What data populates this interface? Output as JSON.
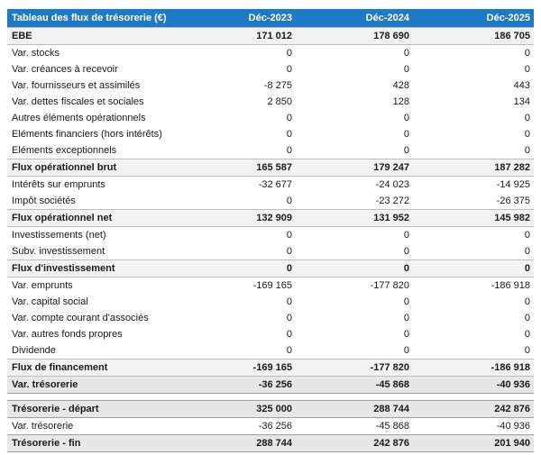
{
  "colors": {
    "header_bg": "#1e7ac4",
    "total_row_bg": "#f3f3f3",
    "summary_row_bg": "#e7e7e7",
    "header_text": "#ffffff"
  },
  "table": {
    "title": "Tableau des flux de trésorerie (€)",
    "columns": [
      "Déc-2023",
      "Déc-2024",
      "Déc-2025"
    ],
    "rows": [
      {
        "label": "EBE",
        "values": [
          "171 012",
          "178 690",
          "186 705"
        ]
      },
      {
        "label": "Var. stocks",
        "values": [
          "0",
          "0",
          "0"
        ]
      },
      {
        "label": "Var. créances à recevoir",
        "values": [
          "0",
          "0",
          "0"
        ]
      },
      {
        "label": "Var. fournisseurs et assimilés",
        "values": [
          "-8 275",
          "428",
          "443"
        ]
      },
      {
        "label": "Var. dettes fiscales et sociales",
        "values": [
          "2 850",
          "128",
          "134"
        ]
      },
      {
        "label": "Autres éléments opérationnels",
        "values": [
          "0",
          "0",
          "0"
        ]
      },
      {
        "label": "Eléments financiers (hors intérêts)",
        "values": [
          "0",
          "0",
          "0"
        ]
      },
      {
        "label": "Eléments exceptionnels",
        "values": [
          "0",
          "0",
          "0"
        ]
      },
      {
        "label": "Flux opérationnel brut",
        "values": [
          "165 587",
          "179 247",
          "187 282"
        ]
      },
      {
        "label": "Intérêts sur emprunts",
        "values": [
          "-32 677",
          "-24 023",
          "-14 925"
        ]
      },
      {
        "label": "Impôt sociétés",
        "values": [
          "0",
          "-23 272",
          "-26 375"
        ]
      },
      {
        "label": "Flux opérationnel net",
        "values": [
          "132 909",
          "131 952",
          "145 982"
        ]
      },
      {
        "label": "Investissements (net)",
        "values": [
          "0",
          "0",
          "0"
        ]
      },
      {
        "label": "Subv. investissement",
        "values": [
          "0",
          "0",
          "0"
        ]
      },
      {
        "label": "Flux d'investissement",
        "values": [
          "0",
          "0",
          "0"
        ]
      },
      {
        "label": "Var. emprunts",
        "values": [
          "-169 165",
          "-177 820",
          "-186 918"
        ]
      },
      {
        "label": "Var. capital social",
        "values": [
          "0",
          "0",
          "0"
        ]
      },
      {
        "label": "Var. compte courant d'associés",
        "values": [
          "0",
          "0",
          "0"
        ]
      },
      {
        "label": "Var. autres fonds propres",
        "values": [
          "0",
          "0",
          "0"
        ]
      },
      {
        "label": "Dividende",
        "values": [
          "0",
          "0",
          "0"
        ]
      },
      {
        "label": "Flux de financement",
        "values": [
          "-169 165",
          "-177 820",
          "-186 918"
        ]
      },
      {
        "label": "Var. trésorerie",
        "values": [
          "-36 256",
          "-45 868",
          "-40 936"
        ]
      },
      {
        "label": "Trésorerie - départ",
        "values": [
          "325 000",
          "288 744",
          "242 876"
        ]
      },
      {
        "label": "Var. trésorerie",
        "values": [
          "-36 256",
          "-45 868",
          "-40 936"
        ]
      },
      {
        "label": "Trésorerie - fin",
        "values": [
          "288 744",
          "242 876",
          "201 940"
        ]
      }
    ]
  }
}
